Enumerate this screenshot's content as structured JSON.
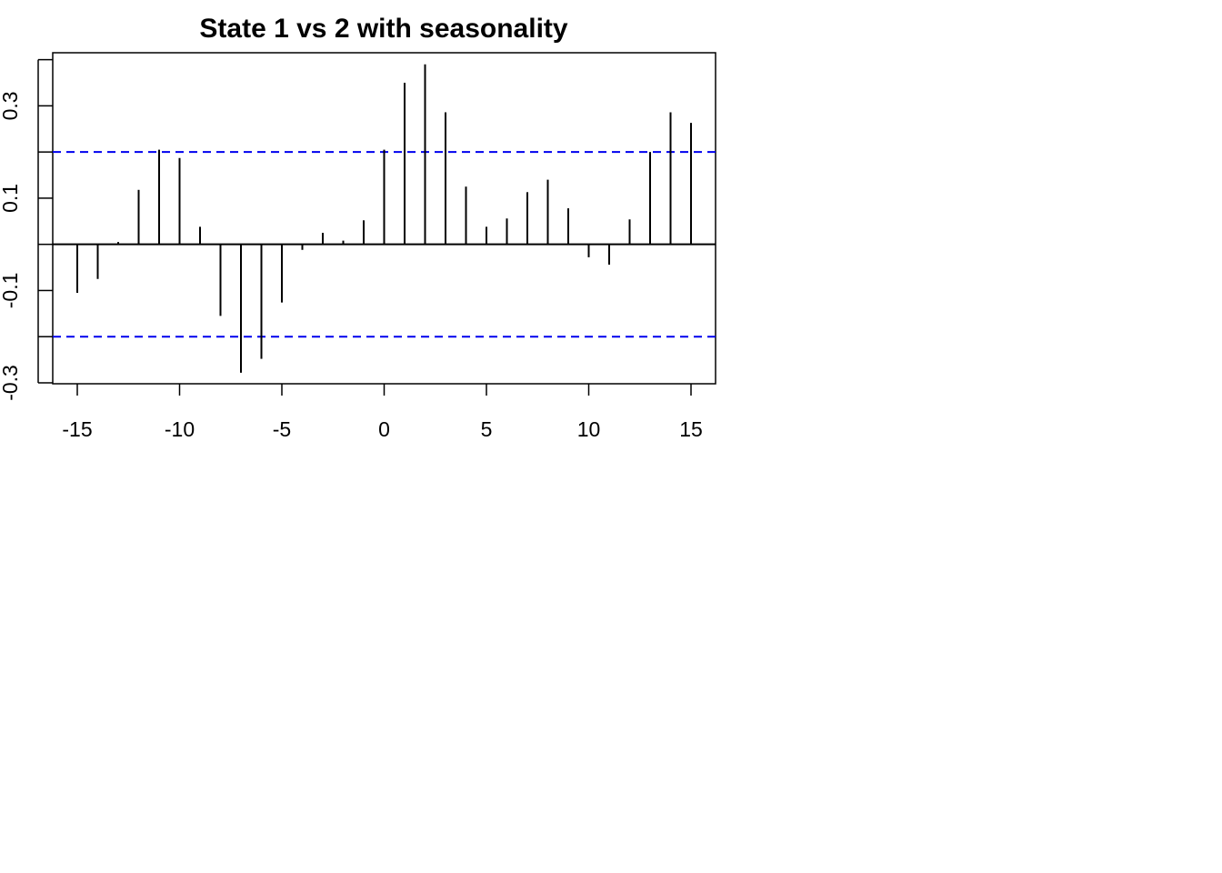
{
  "chart_data": {
    "type": "bar",
    "title": "State 1 vs 2 with seasonality",
    "xlabel": "",
    "ylabel": "",
    "x": [
      -15,
      -14,
      -13,
      -12,
      -11,
      -10,
      -9,
      -8,
      -7,
      -6,
      -5,
      -4,
      -3,
      -2,
      -1,
      0,
      1,
      2,
      3,
      4,
      5,
      6,
      7,
      8,
      9,
      10,
      11,
      12,
      13,
      14,
      15
    ],
    "values": [
      -0.105,
      -0.075,
      0.005,
      0.118,
      0.205,
      0.187,
      0.038,
      -0.155,
      -0.278,
      -0.248,
      -0.126,
      -0.012,
      0.025,
      0.008,
      0.052,
      0.205,
      0.35,
      0.39,
      0.286,
      0.125,
      0.038,
      0.056,
      0.113,
      0.14,
      0.078,
      -0.028,
      -0.044,
      0.054,
      0.2,
      0.286,
      0.263
    ],
    "confidence_band": 0.2,
    "xlim": [
      -16.2,
      16.2
    ],
    "ylim": [
      -0.302,
      0.415
    ],
    "x_ticks": [
      -15,
      -10,
      -5,
      0,
      5,
      10,
      15
    ],
    "x_tick_labels": [
      "-15",
      "-10",
      "-5",
      "0",
      "5",
      "10",
      "15"
    ],
    "y_ticks": [
      -0.3,
      -0.2,
      -0.1,
      0.0,
      0.1,
      0.2,
      0.3,
      0.4
    ],
    "y_tick_labels": [
      "-0.3",
      "-0.1",
      "0.1",
      "0.3"
    ],
    "y_tick_label_values": [
      -0.3,
      -0.1,
      0.1,
      0.3
    ],
    "grid": false,
    "colors": {
      "bars": "#000000",
      "zero_line": "#000000",
      "confidence_band": "#0000ee",
      "frame": "#000000"
    }
  }
}
